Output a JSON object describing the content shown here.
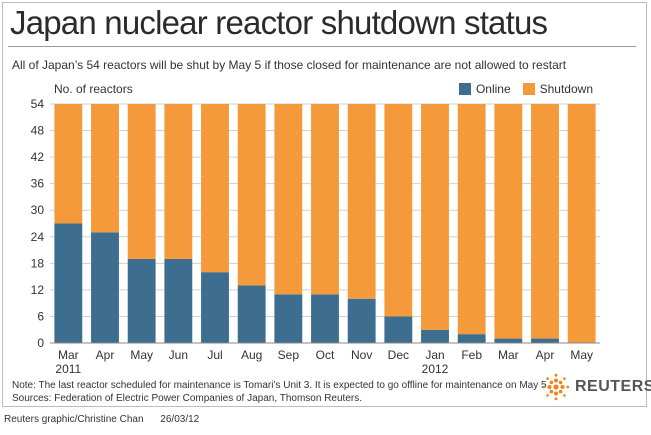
{
  "header": {
    "title": "Japan nuclear reactor shutdown status",
    "subtitle": "All of Japan’s 54 reactors will be shut by May 5 if those closed for maintenance are not allowed to restart"
  },
  "footer": {
    "note": "Note: The last reactor scheduled for maintenance is Tomari’s Unit 3. It is expected to go offline for maintenance on May 5",
    "sources": "Sources: Federation of Electric Power Companies of Japan, Thomson Reuters.",
    "logo_text": "REUTERS",
    "credit": "Reuters graphic/Christine Chan",
    "date": "26/03/12"
  },
  "colors": {
    "online": "#3d6e8f",
    "shutdown": "#f59a3a",
    "grid": "#cfcfcf",
    "logo": "#f0821e"
  },
  "icons": {
    "logo": "reuters-dot-logo-icon"
  },
  "chart_data": {
    "type": "bar",
    "stacked": true,
    "ylabel": "No. of reactors",
    "ylim": [
      0,
      54
    ],
    "yticks": [
      0,
      6,
      12,
      18,
      24,
      30,
      36,
      42,
      48,
      54
    ],
    "grid": true,
    "legend_position": "top-right",
    "categories": [
      "Mar",
      "Apr",
      "May",
      "Jun",
      "Jul",
      "Aug",
      "Sep",
      "Oct",
      "Nov",
      "Dec",
      "Jan",
      "Feb",
      "Mar",
      "Apr",
      "May"
    ],
    "year_labels": [
      "2011",
      "",
      "",
      "",
      "",
      "",
      "",
      "",
      "",
      "",
      "2012",
      "",
      "",
      "",
      ""
    ],
    "series": [
      {
        "name": "Online",
        "color": "#3d6e8f",
        "values": [
          27,
          25,
          19,
          19,
          16,
          13,
          11,
          11,
          10,
          6,
          3,
          2,
          1,
          1,
          0
        ]
      },
      {
        "name": "Shutdown",
        "color": "#f59a3a",
        "values": [
          27,
          29,
          35,
          35,
          38,
          41,
          43,
          43,
          44,
          48,
          51,
          52,
          53,
          53,
          54
        ]
      }
    ]
  }
}
